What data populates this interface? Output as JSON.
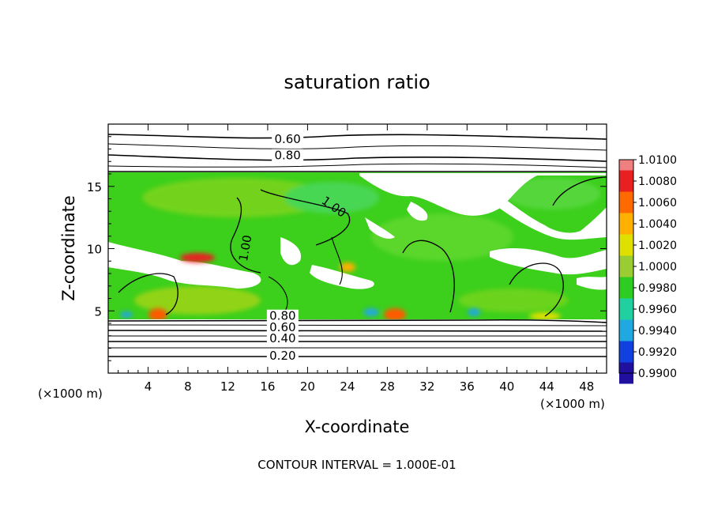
{
  "chart_data": {
    "type": "heatmap",
    "title": "saturation ratio",
    "xlabel": "X-coordinate",
    "ylabel": "Z-coordinate",
    "x_unit_label": "(×1000 m)",
    "y_unit_label": "(×1000 m)",
    "xlim": [
      0,
      50
    ],
    "ylim": [
      0,
      20
    ],
    "x_ticks": [
      4,
      8,
      12,
      16,
      20,
      24,
      28,
      32,
      36,
      40,
      44,
      48
    ],
    "y_ticks": [
      5,
      10,
      15
    ],
    "footer": "CONTOUR INTERVAL = 1.000E-01",
    "colorbar": {
      "levels": [
        "1.0100",
        "1.0080",
        "1.0060",
        "1.0040",
        "1.0020",
        "1.0000",
        "0.9980",
        "0.9960",
        "0.9940",
        "0.9920",
        "0.9900"
      ],
      "colors": [
        "#f08080",
        "#e82020",
        "#ff6a00",
        "#ffb000",
        "#e0e000",
        "#9acd32",
        "#2ecc20",
        "#20d0a0",
        "#20a8e0",
        "#1040e0",
        "#2010a0",
        "#5a2080"
      ]
    },
    "contour_labels": [
      {
        "text": "0.60",
        "x": 18,
        "z": 18.6
      },
      {
        "text": "0.80",
        "x": 18,
        "z": 17.3
      },
      {
        "text": "1.00",
        "x": 22.5,
        "z": 13.2
      },
      {
        "text": "1.00",
        "x": 14,
        "z": 10.0
      },
      {
        "text": "0.80",
        "x": 17.5,
        "z": 4.4
      },
      {
        "text": "0.60",
        "x": 17.5,
        "z": 3.5
      },
      {
        "text": "0.40",
        "x": 17.5,
        "z": 2.6
      },
      {
        "text": "0.20",
        "x": 17.5,
        "z": 1.2
      }
    ]
  }
}
